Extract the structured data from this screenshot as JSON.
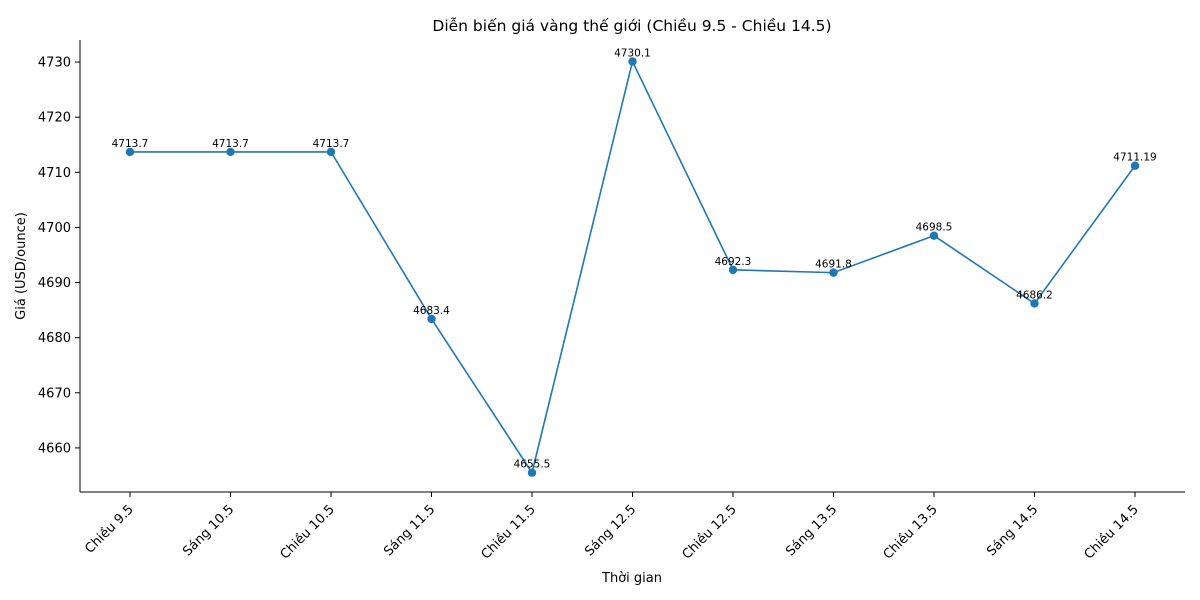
{
  "chart_data": {
    "type": "line",
    "title": "Diễn biến giá vàng thế giới (Chiều 9.5 - Chiều 14.5)",
    "xlabel": "Thời gian",
    "ylabel": "Giá (USD/ounce)",
    "categories": [
      "Chiều 9.5",
      "Sáng 10.5",
      "Chiều 10.5",
      "Sáng 11.5",
      "Chiều 11.5",
      "Sáng 12.5",
      "Chiều 12.5",
      "Sáng 13.5",
      "Chiều 13.5",
      "Sáng 14.5",
      "Chiều 14.5"
    ],
    "series": [
      {
        "values": [
          4713.7,
          4713.7,
          4713.7,
          4683.4,
          4655.5,
          4730.1,
          4692.3,
          4691.8,
          4698.5,
          4686.2,
          4711.19
        ],
        "data_labels": [
          "4713.7",
          "4713.7",
          "4713.7",
          "4683.4",
          "4655.5",
          "4730.1",
          "4692.3",
          "4691.8",
          "4698.5",
          "4686.2",
          "4711.19"
        ],
        "color": "#1f77b4"
      }
    ],
    "ylim": [
      4652,
      4734
    ],
    "yticks": [
      4660,
      4670,
      4680,
      4690,
      4700,
      4710,
      4720,
      4730
    ],
    "grid": false,
    "legend": "none",
    "x_tick_rotation": 45
  }
}
